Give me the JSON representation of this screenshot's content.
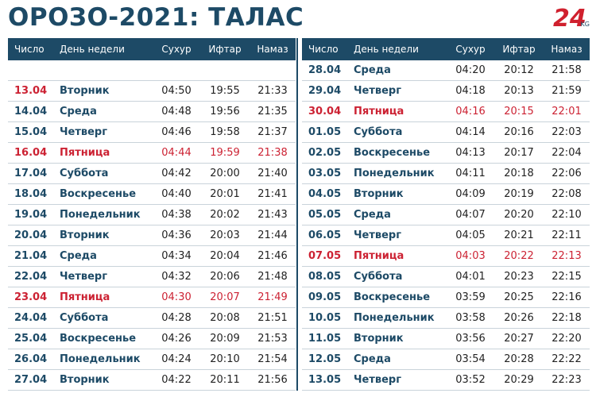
{
  "header": {
    "title": "ОРОЗО-2021: ТАЛАС",
    "logo": "24",
    "logo_suffix": "KG"
  },
  "columns": [
    "Число",
    "День недели",
    "Сухур",
    "Ифтар",
    "Намаз"
  ],
  "left_rows": [
    [
      "13.04",
      "Вторник",
      "04:50",
      "19:55",
      "21:33"
    ],
    [
      "14.04",
      "Среда",
      "04:48",
      "19:56",
      "21:35"
    ],
    [
      "15.04",
      "Четверг",
      "04:46",
      "19:58",
      "21:37"
    ],
    [
      "16.04",
      "Пятница",
      "04:44",
      "19:59",
      "21:38"
    ],
    [
      "17.04",
      "Суббота",
      "04:42",
      "20:00",
      "21:40"
    ],
    [
      "18.04",
      "Воскресенье",
      "04:40",
      "20:01",
      "21:41"
    ],
    [
      "19.04",
      "Понедельник",
      "04:38",
      "20:02",
      "21:43"
    ],
    [
      "20.04",
      "Вторник",
      "04:36",
      "20:03",
      "21:44"
    ],
    [
      "21.04",
      "Среда",
      "04:34",
      "20:04",
      "21:46"
    ],
    [
      "22.04",
      "Четверг",
      "04:32",
      "20:06",
      "21:48"
    ],
    [
      "23.04",
      "Пятница",
      "04:30",
      "20:07",
      "21:49"
    ],
    [
      "24.04",
      "Суббота",
      "04:28",
      "20:08",
      "21:51"
    ],
    [
      "25.04",
      "Воскресенье",
      "04:26",
      "20:09",
      "21:53"
    ],
    [
      "26.04",
      "Понедельник",
      "04:24",
      "20:10",
      "21:54"
    ],
    [
      "27.04",
      "Вторник",
      "04:22",
      "20:11",
      "21:56"
    ]
  ],
  "right_rows": [
    [
      "28.04",
      "Среда",
      "04:20",
      "20:12",
      "21:58"
    ],
    [
      "29.04",
      "Четверг",
      "04:18",
      "20:13",
      "21:59"
    ],
    [
      "30.04",
      "Пятница",
      "04:16",
      "20:15",
      "22:01"
    ],
    [
      "01.05",
      "Суббота",
      "04:14",
      "20:16",
      "22:03"
    ],
    [
      "02.05",
      "Воскресенье",
      "04:13",
      "20:17",
      "22:04"
    ],
    [
      "03.05",
      "Понедельник",
      "04:11",
      "20:18",
      "22:06"
    ],
    [
      "04.05",
      "Вторник",
      "04:09",
      "20:19",
      "22:08"
    ],
    [
      "05.05",
      "Среда",
      "04:07",
      "20:20",
      "22:10"
    ],
    [
      "06.05",
      "Четверг",
      "04:05",
      "20:21",
      "22:11"
    ],
    [
      "07.05",
      "Пятница",
      "04:03",
      "20:22",
      "22:13"
    ],
    [
      "08.05",
      "Суббота",
      "04:01",
      "20:23",
      "22:15"
    ],
    [
      "09.05",
      "Воскресенье",
      "03:59",
      "20:25",
      "22:16"
    ],
    [
      "10.05",
      "Понедельник",
      "03:58",
      "20:26",
      "22:18"
    ],
    [
      "11.05",
      "Вторник",
      "03:56",
      "20:27",
      "22:20"
    ],
    [
      "12.05",
      "Среда",
      "03:54",
      "20:28",
      "22:22"
    ],
    [
      "13.05",
      "Четверг",
      "03:52",
      "20:29",
      "22:23"
    ]
  ]
}
